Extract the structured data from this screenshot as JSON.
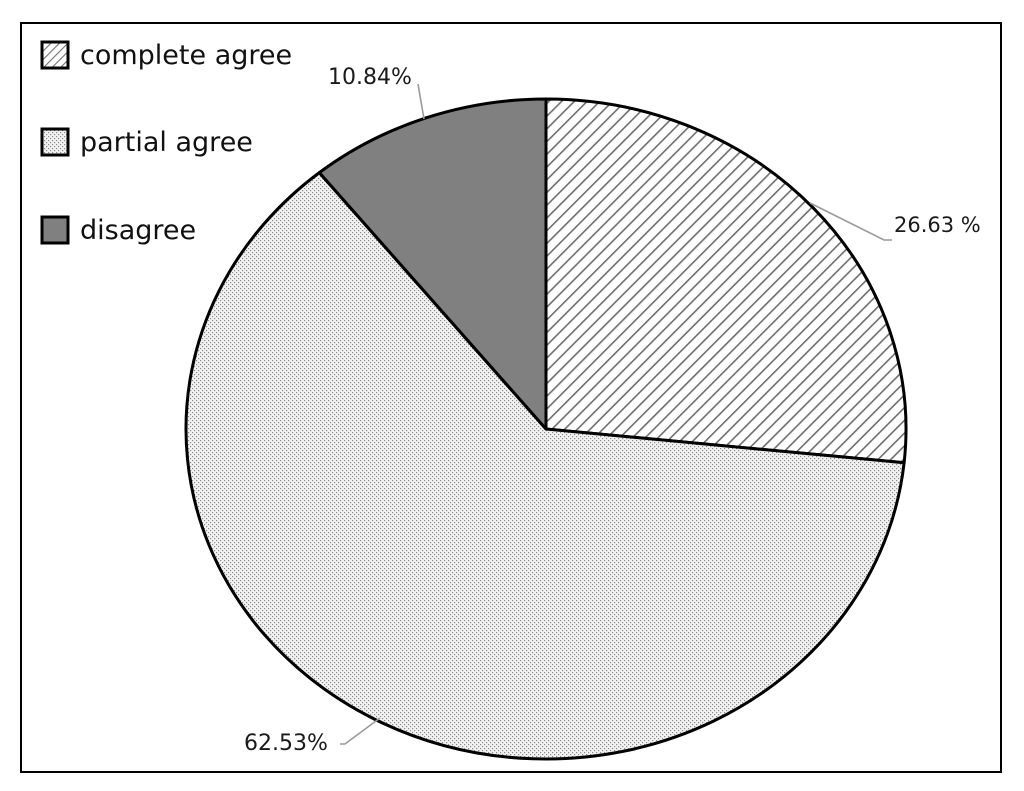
{
  "chart_data": {
    "type": "pie",
    "slices": [
      {
        "name": "complete agree",
        "value": 26.63,
        "label": "26.63 %",
        "pattern": "hatch"
      },
      {
        "name": "partial agree",
        "value": 62.53,
        "label": "62.53%",
        "pattern": "dots"
      },
      {
        "name": "disagree",
        "value": 10.84,
        "label": "10.84%",
        "pattern": "solid"
      }
    ],
    "legend": {
      "position": "top-left",
      "items": [
        "complete agree",
        "partial agree",
        "disagree"
      ]
    },
    "colors": {
      "disagree": "#808080",
      "partial_agree_bg": "#f2f2f2",
      "partial_agree_dot": "#8c8c8c",
      "complete_agree_bg": "#ffffff",
      "complete_agree_stripe": "#6e6e6e",
      "outline": "#000000"
    }
  }
}
